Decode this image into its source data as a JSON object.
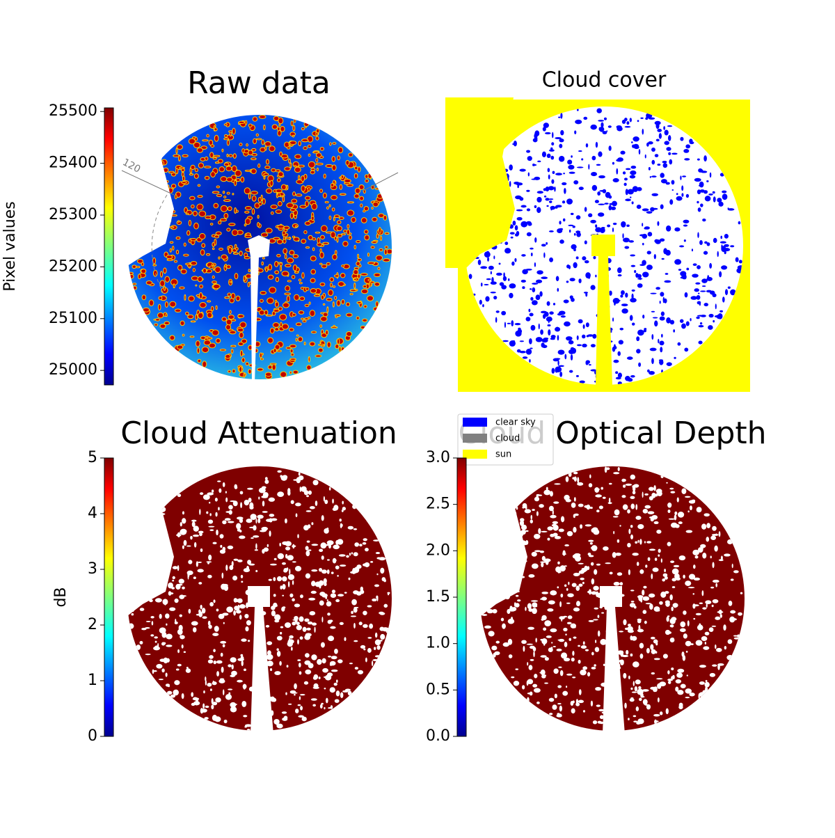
{
  "chart_data": [
    {
      "type": "image",
      "title": "Raw data",
      "annotations": [
        "120"
      ],
      "colorbar": {
        "label": "Pixel values",
        "colormap": "jet",
        "lim": [
          24972,
          25507
        ],
        "ticks": [
          25000,
          25100,
          25200,
          25300,
          25400,
          25500
        ]
      }
    },
    {
      "type": "categorical-image",
      "title": "Cloud cover",
      "series": [
        {
          "name": "clear sky",
          "color": "#0000ff"
        },
        {
          "name": "cloud",
          "color": "#808080"
        },
        {
          "name": "sun",
          "color": "#ffff00"
        }
      ]
    },
    {
      "type": "image",
      "title": "Cloud Attenuation",
      "colorbar": {
        "label": "dB",
        "colormap": "jet",
        "lim": [
          0,
          5
        ],
        "ticks": [
          0,
          1,
          2,
          3,
          4,
          5
        ]
      }
    },
    {
      "type": "image",
      "title": "Cloud Optical Depth",
      "colorbar": {
        "colormap": "jet",
        "lim": [
          0,
          3
        ],
        "ticks": [
          {
            "value": 0,
            "label": "0.0"
          },
          {
            "value": 0.5,
            "label": "0.5"
          },
          {
            "value": 1,
            "label": "1.0"
          },
          {
            "value": 1.5,
            "label": "1.5"
          },
          {
            "value": 2,
            "label": "2.0"
          },
          {
            "value": 2.5,
            "label": "2.5"
          },
          {
            "value": 3,
            "label": "3.0"
          }
        ]
      }
    }
  ]
}
